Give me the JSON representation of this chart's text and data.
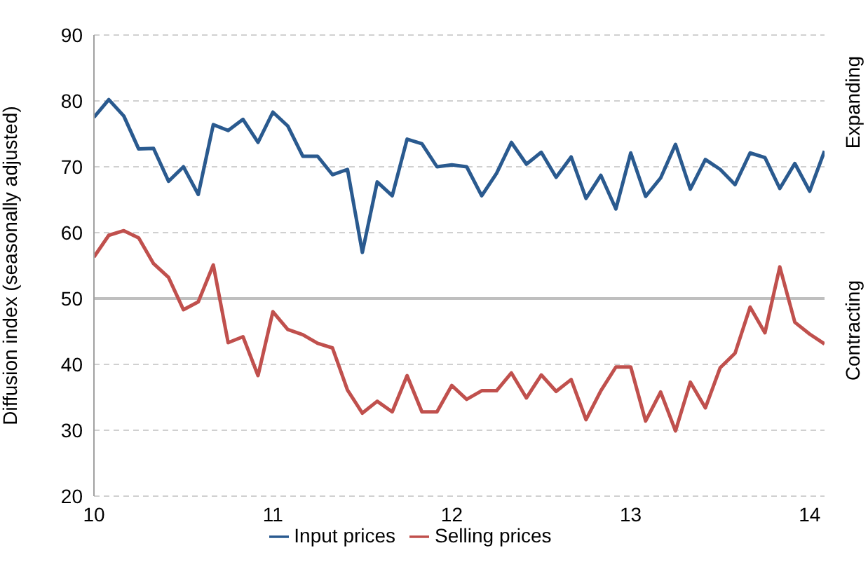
{
  "chart_data": {
    "type": "line",
    "ylabel": "Diffusion index (seasonally adjusted)",
    "x": [
      10,
      10.083,
      10.167,
      10.25,
      10.333,
      10.417,
      10.5,
      10.583,
      10.667,
      10.75,
      10.833,
      10.917,
      11,
      11.083,
      11.167,
      11.25,
      11.333,
      11.417,
      11.5,
      11.583,
      11.667,
      11.75,
      11.833,
      11.917,
      12,
      12.083,
      12.167,
      12.25,
      12.333,
      12.417,
      12.5,
      12.583,
      12.667,
      12.75,
      12.833,
      12.917,
      13,
      13.083,
      13.167,
      13.25,
      13.333,
      13.417,
      13.5,
      13.583,
      13.667,
      13.75,
      13.833,
      13.917,
      14,
      14.083
    ],
    "series": [
      {
        "name": "Input prices",
        "color": "#2a5a8f",
        "values": [
          77.5,
          80.2,
          77.7,
          72.7,
          72.8,
          67.8,
          70,
          65.8,
          76.4,
          75.5,
          77.2,
          73.7,
          78.3,
          76.2,
          71.6,
          71.6,
          68.8,
          69.6,
          57,
          67.7,
          65.6,
          74.2,
          73.5,
          70,
          70.3,
          70,
          65.6,
          69,
          73.7,
          70.4,
          72.2,
          68.4,
          71.5,
          65.2,
          68.7,
          63.6,
          72.1,
          65.5,
          68.3,
          73.4,
          66.6,
          71.1,
          69.6,
          67.3,
          72.1,
          71.4,
          66.7,
          70.5,
          66.3,
          72.4
        ]
      },
      {
        "name": "Selling prices",
        "color": "#c0504d",
        "values": [
          56.3,
          59.6,
          60.3,
          59.2,
          55.3,
          53.2,
          48.3,
          49.5,
          55.1,
          43.3,
          44.2,
          38.3,
          48,
          45.3,
          44.5,
          43.2,
          42.5,
          36.1,
          32.6,
          34.4,
          32.8,
          38.3,
          32.8,
          32.8,
          36.8,
          34.7,
          36,
          36,
          38.7,
          34.9,
          38.4,
          35.9,
          37.7,
          31.6,
          36,
          39.6,
          39.6,
          31.4,
          35.8,
          29.9,
          37.3,
          33.4,
          39.5,
          41.7,
          48.7,
          44.8,
          54.8,
          46.4,
          44.6,
          43.1
        ]
      }
    ],
    "xlim": [
      10,
      14.083
    ],
    "xticks": [
      10,
      11,
      12,
      13,
      14
    ],
    "ylim": [
      20,
      90
    ],
    "yticks": [
      20,
      30,
      40,
      50,
      60,
      70,
      80,
      90
    ],
    "ref_lines": [
      {
        "axis": "y",
        "value": 50,
        "color": "#bfbfbf"
      }
    ],
    "annotations": [
      "Expanding",
      "Contracting"
    ],
    "grid": "y",
    "legend": "bottom",
    "marker": "none",
    "line_style": "solid"
  }
}
